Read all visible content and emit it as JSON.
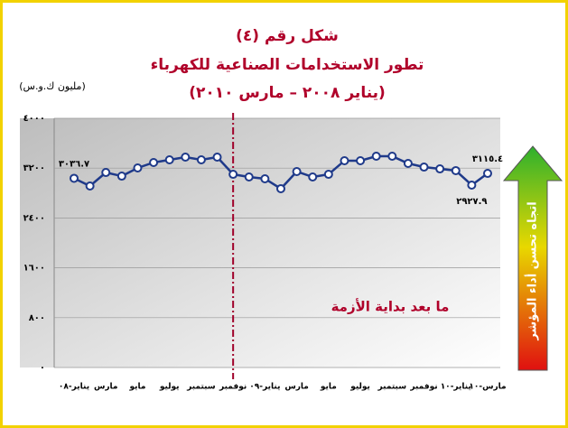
{
  "chart_data": {
    "type": "line",
    "title": "شكل رقم (٤)",
    "subtitle": "تطور الاستخدامات الصناعية للكهرباء",
    "period": "(يناير ٢٠٠٨ – مارس ٢٠١٠)",
    "y_label": "(مليون ك.و.س)",
    "annotation": "ما بعد بداية الأزمة",
    "arrow_label": "اتجاه تحسن أداء المؤشر",
    "vline_at": 10,
    "categories": [
      "يناير-٠٨",
      null,
      "مارس",
      null,
      "مايو",
      null,
      "يوليو",
      null,
      "سبتمبر",
      null,
      "نوفمبر",
      null,
      "يناير-٠٩",
      null,
      "مارس",
      null,
      "مايو",
      null,
      "يوليو",
      null,
      "سبتمبر",
      null,
      "نوفمبر",
      null,
      "يناير-١٠",
      null,
      "مارس-١٠"
    ],
    "series": [
      {
        "name": "الاستخدامات الصناعية",
        "color": "#1f3a8a",
        "values": [
          3036.7,
          2913,
          3130,
          3072,
          3203,
          3290,
          3333,
          3377,
          3333,
          3377,
          3101,
          3058,
          3029,
          2870,
          3145,
          3058,
          3101,
          3319,
          3319,
          3391,
          3391,
          3275,
          3217,
          3188,
          3160,
          2927.9,
          3115.4
        ],
        "value_labels": [
          "٣٠٣٦.٧",
          null,
          null,
          null,
          null,
          null,
          null,
          null,
          null,
          null,
          null,
          null,
          null,
          null,
          null,
          null,
          null,
          null,
          null,
          null,
          null,
          null,
          null,
          null,
          null,
          "٢٩٢٧.٩",
          "٣١١٥.٤"
        ]
      }
    ],
    "ylim": [
      0,
      4000
    ],
    "yticks": [
      {
        "value": 0,
        "label": "٠"
      },
      {
        "value": 800,
        "label": "٨٠٠"
      },
      {
        "value": 1600,
        "label": "١٦٠٠"
      },
      {
        "value": 2400,
        "label": "٢٤٠٠"
      },
      {
        "value": 3200,
        "label": "٣٢٠٠"
      },
      {
        "value": 4000,
        "label": "٤٠٠٠"
      }
    ],
    "grid": true
  }
}
